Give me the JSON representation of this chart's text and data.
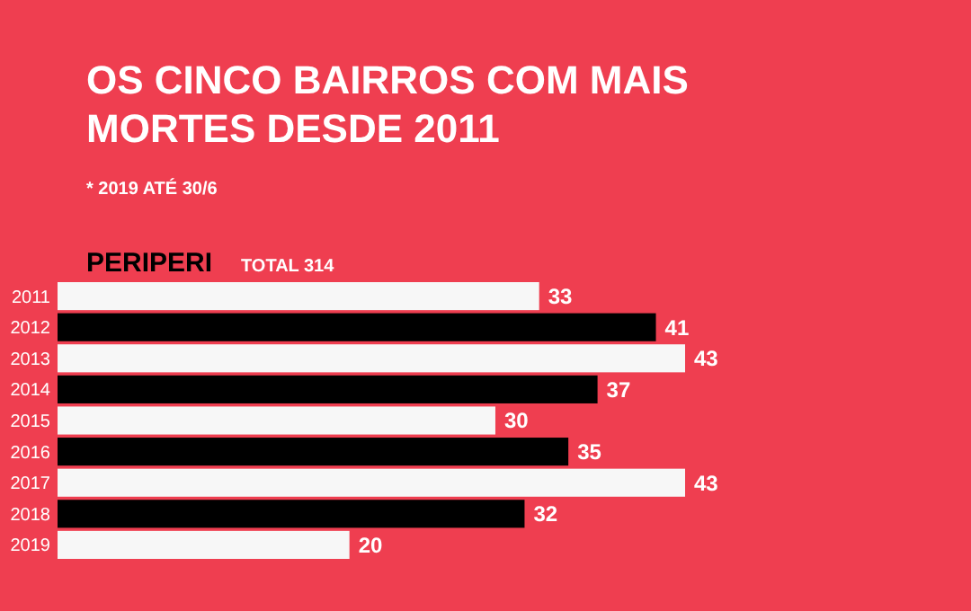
{
  "chart_data": {
    "type": "bar",
    "orientation": "horizontal",
    "title": "OS CINCO BAIRROS COM MAIS MORTES DESDE 2011",
    "subtitle": "* 2019 ATÉ 30/6",
    "annotations": [
      "PERIPERI",
      "TOTAL 314"
    ],
    "categories": [
      "2011",
      "2012",
      "2013",
      "2014",
      "2015",
      "2016",
      "2017",
      "2018",
      "2019"
    ],
    "values": [
      33,
      41,
      43,
      37,
      30,
      35,
      43,
      32,
      20
    ],
    "colors": [
      "#f7f7f7",
      "#000000",
      "#f7f7f7",
      "#000000",
      "#f7f7f7",
      "#000000",
      "#f7f7f7",
      "#000000",
      "#f7f7f7"
    ],
    "data_labels": true
  }
}
